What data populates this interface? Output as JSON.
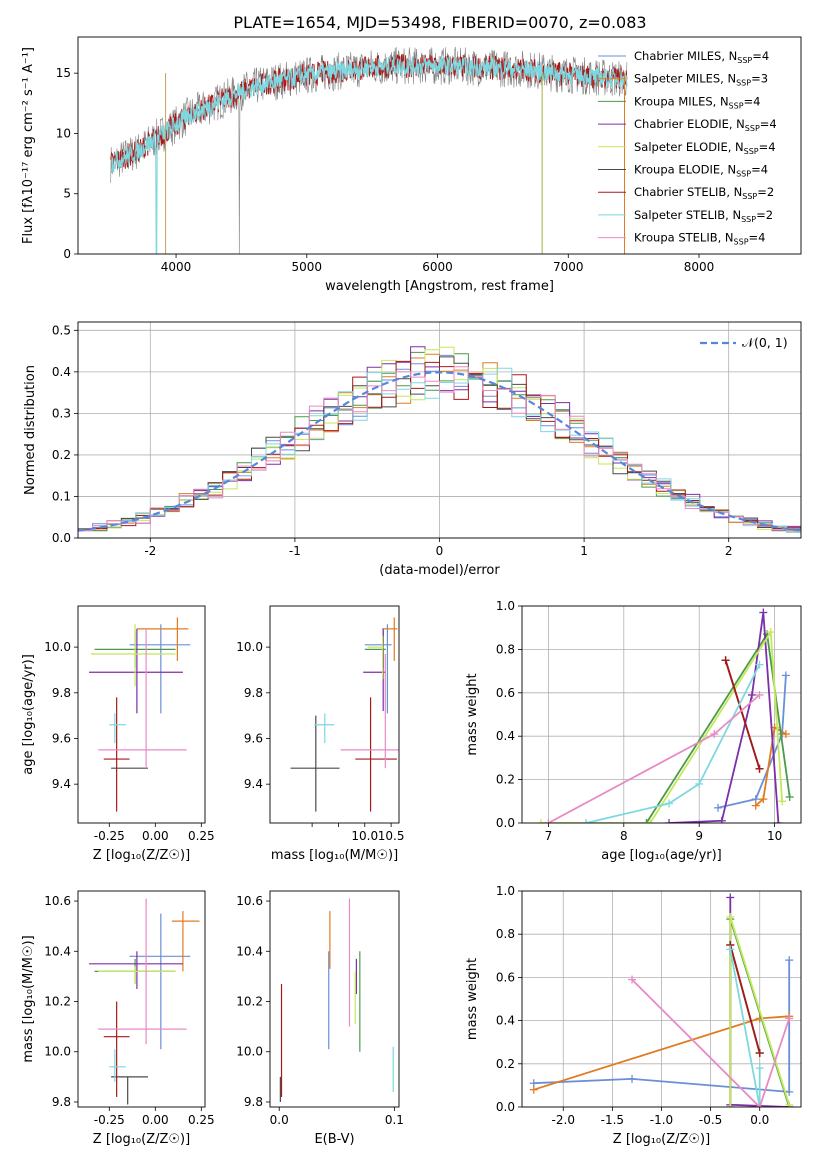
{
  "figure_title": "PLATE=1654, MJD=53498, FIBERID=0070, z=0.083",
  "series_colors": [
    "#6a8fd8",
    "#e07b1f",
    "#4a9a4a",
    "#7b2fa8",
    "#c4e85a",
    "#4a4a4a",
    "#a81a1a",
    "#7ed8e0",
    "#e88ac4"
  ],
  "chart_data": [
    {
      "id": "spectrum",
      "type": "line",
      "xlabel": "wavelength [Angstrom, rest frame]",
      "ylabel": "Flux [fλ10⁻¹⁷ erg cm⁻² s⁻¹ A⁻¹]",
      "xlim": [
        3250,
        8780
      ],
      "ylim": [
        0,
        18
      ],
      "xticks": [
        4000,
        5000,
        6000,
        7000,
        8000
      ],
      "yticks": [
        0,
        5,
        10,
        15
      ],
      "grid": false,
      "legend_position": "right",
      "legend": [
        "Chabrier MILES, N_SSP=4",
        "Salpeter MILES, N_SSP=3",
        "Kroupa MILES, N_SSP=4",
        "Chabrier ELODIE, N_SSP=4",
        "Salpeter ELODIE, N_SSP=4",
        "Kroupa ELODIE, N_SSP=4",
        "Chabrier STELIB, N_SSP=2",
        "Salpeter STELIB, N_SSP=2",
        "Kroupa STELIB, N_SSP=4"
      ],
      "legend_colors": [
        "#6a8fd8",
        "#e07b1f",
        "#4a9a4a",
        "#7b2fa8",
        "#c4e85a",
        "#4a4a4a",
        "#a81a1a",
        "#7ed8e0",
        "#e88ac4"
      ],
      "continuum": {
        "x": [
          3500,
          3700,
          3900,
          4100,
          4300,
          4500,
          4700,
          4900,
          5100,
          5300,
          5500,
          5700,
          5900,
          6100,
          6300,
          6500,
          6700,
          6900,
          7100,
          7300,
          7450
        ],
        "y": [
          7.5,
          8.5,
          10.0,
          11.5,
          12.5,
          13.5,
          14.2,
          14.6,
          15.0,
          15.2,
          15.5,
          15.6,
          15.6,
          15.6,
          15.5,
          15.4,
          15.3,
          15.0,
          14.8,
          14.6,
          14.5
        ]
      }
    },
    {
      "id": "residuals",
      "type": "line",
      "xlabel": "(data-model)/error",
      "ylabel": "Normed distribution",
      "xlim": [
        -2.5,
        2.5
      ],
      "ylim": [
        0,
        0.52
      ],
      "xticks": [
        -2,
        -1,
        0,
        1,
        2
      ],
      "yticks": [
        0.0,
        0.1,
        0.2,
        0.3,
        0.4,
        0.5
      ],
      "grid": true,
      "legend_position": "top-right",
      "legend": [
        "𝒩(0, 1)"
      ],
      "bin_width": 0.1
    },
    {
      "id": "age_vs_Z",
      "type": "scatter",
      "xlabel": "Z [log₁₀(Z/Z☉)]",
      "ylabel": "age  [log₁₀(age/yr)]",
      "xlim": [
        -0.42,
        0.27
      ],
      "ylim": [
        9.23,
        10.18
      ],
      "xticks": [
        -0.25,
        0.0,
        0.25
      ],
      "yticks": [
        9.4,
        9.6,
        9.8,
        10.0
      ],
      "points": [
        {
          "x": 0.03,
          "y": 10.01,
          "xerr": [
            0.17,
            0.16
          ],
          "yerr": [
            0.3,
            0.09
          ]
        },
        {
          "x": 0.12,
          "y": 10.08,
          "xerr": [
            0.22,
            0.06
          ],
          "yerr": [
            0.14,
            0.05
          ]
        },
        {
          "x": -0.11,
          "y": 9.99,
          "xerr": [
            0.22,
            0.22
          ],
          "yerr": [
            0.08,
            0.08
          ]
        },
        {
          "x": -0.1,
          "y": 9.89,
          "xerr": [
            0.26,
            0.25
          ],
          "yerr": [
            0.18,
            0.19
          ]
        },
        {
          "x": -0.11,
          "y": 9.97,
          "xerr": [
            0.24,
            0.22
          ],
          "yerr": [
            0.14,
            0.13
          ]
        },
        {
          "x": -0.15,
          "y": 9.47,
          "xerr": [
            0.09,
            0.11
          ],
          "yerr": [
            0.0,
            0.0
          ]
        },
        {
          "x": -0.21,
          "y": 9.51,
          "xerr": [
            0.07,
            0.07
          ],
          "yerr": [
            0.23,
            0.27
          ]
        },
        {
          "x": -0.22,
          "y": 9.66,
          "xerr": [
            0.03,
            0.06
          ],
          "yerr": [
            0.08,
            0.05
          ]
        },
        {
          "x": -0.05,
          "y": 9.55,
          "xerr": [
            0.26,
            0.22
          ],
          "yerr": [
            0.08,
            0.53
          ]
        }
      ]
    },
    {
      "id": "age_vs_mass",
      "type": "scatter",
      "xlabel": "mass [log₁₀(M/M☉)]",
      "ylabel": "",
      "xlim": [
        8.2,
        10.65
      ],
      "ylim": [
        9.23,
        10.18
      ],
      "xticks": [
        9.0,
        9.5,
        10.0,
        10.5
      ],
      "xtick_labels": [
        "",
        "",
        "10.0",
        "10.5"
      ],
      "yticks": [
        9.4,
        9.6,
        9.8,
        10.0
      ],
      "points": [
        {
          "x": 10.43,
          "y": 10.01,
          "xerr": [
            0.43,
            0.08
          ],
          "yerr": [
            0.3,
            0.09
          ]
        },
        {
          "x": 10.56,
          "y": 10.08,
          "xerr": [
            0.23,
            0.06
          ],
          "yerr": [
            0.14,
            0.05
          ]
        },
        {
          "x": 10.35,
          "y": 9.99,
          "xerr": [
            0.35,
            0.05
          ],
          "yerr": [
            0.08,
            0.08
          ]
        },
        {
          "x": 10.35,
          "y": 9.89,
          "xerr": [
            0.38,
            0.05
          ],
          "yerr": [
            0.17,
            0.19
          ]
        },
        {
          "x": 10.34,
          "y": 10.0,
          "xerr": [
            0.29,
            0.02
          ],
          "yerr": [
            0.14,
            0.05
          ]
        },
        {
          "x": 9.07,
          "y": 9.47,
          "xerr": [
            0.48,
            0.45
          ],
          "yerr": [
            0.19,
            0.23
          ]
        },
        {
          "x": 10.11,
          "y": 9.51,
          "xerr": [
            0.29,
            0.5
          ],
          "yerr": [
            0.23,
            0.27
          ]
        },
        {
          "x": 9.24,
          "y": 9.66,
          "xerr": [
            0.2,
            0.18
          ],
          "yerr": [
            0.08,
            0.05
          ]
        },
        {
          "x": 10.39,
          "y": 9.55,
          "xerr": [
            0.85,
            0.65
          ],
          "yerr": [
            0.08,
            0.42
          ]
        }
      ]
    },
    {
      "id": "mass_weight_vs_age",
      "type": "line",
      "xlabel": "age  [log₁₀(age/yr)]",
      "ylabel": "mass weight",
      "xlim": [
        6.65,
        10.35
      ],
      "ylim": [
        0,
        1.0
      ],
      "xticks": [
        7,
        8,
        9,
        10
      ],
      "yticks": [
        0.0,
        0.2,
        0.4,
        0.6,
        0.8,
        1.0
      ],
      "grid": true,
      "series": [
        {
          "x": [
            9.25,
            9.75,
            10.1,
            10.15
          ],
          "y": [
            0.07,
            0.11,
            0.41,
            0.68
          ]
        },
        {
          "x": [
            9.75,
            9.85,
            10.0,
            10.15
          ],
          "y": [
            0.08,
            0.11,
            0.44,
            0.41
          ]
        },
        {
          "x": [
            8.3,
            9.9,
            10.2
          ],
          "y": [
            0.0,
            0.87,
            0.12
          ]
        },
        {
          "x": [
            8.6,
            9.3,
            9.7,
            9.85,
            10.05
          ],
          "y": [
            0.0,
            0.01,
            0.59,
            0.97,
            0.0
          ]
        },
        {
          "x": [
            6.9,
            8.35,
            9.95,
            10.1
          ],
          "y": [
            0.0,
            0.0,
            0.88,
            0.1
          ]
        },
        {
          "x": [
            9.35,
            9.8
          ],
          "y": [
            0.75,
            0.25
          ]
        },
        {
          "x": [
            9.35,
            9.8
          ],
          "y": [
            0.75,
            0.25
          ]
        },
        {
          "x": [
            7.5,
            8.6,
            9.0,
            9.8
          ],
          "y": [
            0.0,
            0.09,
            0.18,
            0.73
          ]
        },
        {
          "x": [
            7.0,
            9.2,
            9.8
          ],
          "y": [
            0.0,
            0.41,
            0.59
          ]
        }
      ]
    },
    {
      "id": "mass_vs_Z",
      "type": "scatter",
      "xlabel": "Z [log₁₀(Z/Z☉)]",
      "ylabel": "mass [log₁₀(M/M☉)]",
      "xlim": [
        -0.42,
        0.27
      ],
      "ylim": [
        9.78,
        10.64
      ],
      "xticks": [
        -0.25,
        0.0,
        0.25
      ],
      "yticks": [
        9.8,
        10.0,
        10.2,
        10.4,
        10.6
      ],
      "points": [
        {
          "x": 0.03,
          "y": 10.38,
          "xerr": [
            0.17,
            0.16
          ],
          "yerr": [
            0.37,
            0.17
          ]
        },
        {
          "x": 0.15,
          "y": 10.52,
          "xerr": [
            0.06,
            0.09
          ],
          "yerr": [
            0.2,
            0.04
          ]
        },
        {
          "x": -0.11,
          "y": 10.32,
          "xerr": [
            0.22,
            0.22
          ],
          "yerr": [
            0.05,
            0.05
          ]
        },
        {
          "x": -0.1,
          "y": 10.35,
          "xerr": [
            0.26,
            0.25
          ],
          "yerr": [
            0.1,
            0.05
          ]
        },
        {
          "x": -0.11,
          "y": 10.32,
          "xerr": [
            0.2,
            0.22
          ],
          "yerr": [
            0.05,
            0.02
          ]
        },
        {
          "x": -0.15,
          "y": 9.9,
          "xerr": [
            0.09,
            0.11
          ],
          "yerr": [
            0.11,
            0.0
          ]
        },
        {
          "x": -0.21,
          "y": 10.06,
          "xerr": [
            0.07,
            0.07
          ],
          "yerr": [
            0.24,
            0.14
          ]
        },
        {
          "x": -0.22,
          "y": 9.94,
          "xerr": [
            0.03,
            0.06
          ],
          "yerr": [
            0.06,
            0.07
          ]
        },
        {
          "x": -0.05,
          "y": 10.09,
          "xerr": [
            0.26,
            0.22
          ],
          "yerr": [
            0.06,
            0.52
          ]
        }
      ]
    },
    {
      "id": "mass_vs_ebv",
      "type": "scatter",
      "xlabel": "E(B-V)",
      "ylabel": "",
      "xlim": [
        -0.008,
        0.104
      ],
      "ylim": [
        9.78,
        10.64
      ],
      "xticks": [
        0.0,
        0.1
      ],
      "yticks": [
        9.8,
        10.0,
        10.2,
        10.4,
        10.6
      ],
      "points": [
        {
          "x": 0.043,
          "y": 10.2,
          "xerr": [
            0,
            0
          ],
          "yerr": [
            0.19,
            0.2
          ]
        },
        {
          "x": 0.044,
          "y": 10.45,
          "xerr": [
            0,
            0
          ],
          "yerr": [
            0.12,
            0.11
          ]
        },
        {
          "x": 0.07,
          "y": 10.2,
          "xerr": [
            0,
            0
          ],
          "yerr": [
            0.2,
            0.2
          ]
        },
        {
          "x": 0.067,
          "y": 10.33,
          "xerr": [
            0,
            0
          ],
          "yerr": [
            0.1,
            0.04
          ]
        },
        {
          "x": 0.066,
          "y": 10.25,
          "xerr": [
            0,
            0
          ],
          "yerr": [
            0.14,
            0.07
          ]
        },
        {
          "x": 0.001,
          "y": 9.9,
          "xerr": [
            0,
            0
          ],
          "yerr": [
            0.1,
            0.0
          ]
        },
        {
          "x": 0.002,
          "y": 10.06,
          "xerr": [
            0,
            0
          ],
          "yerr": [
            0.24,
            0.21
          ]
        },
        {
          "x": 0.099,
          "y": 9.94,
          "xerr": [
            0,
            0
          ],
          "yerr": [
            0.1,
            0.08
          ]
        },
        {
          "x": 0.061,
          "y": 10.45,
          "xerr": [
            0,
            0
          ],
          "yerr": [
            0.35,
            0.16
          ]
        }
      ]
    },
    {
      "id": "mass_weight_vs_Z",
      "type": "line",
      "xlabel": "Z [log₁₀(Z/Z☉)]",
      "ylabel": "mass weight",
      "xlim": [
        -2.42,
        0.42
      ],
      "ylim": [
        0,
        1.0
      ],
      "xticks": [
        -2.0,
        -1.5,
        -1.0,
        -0.5,
        0.0
      ],
      "yticks": [
        0.0,
        0.2,
        0.4,
        0.6,
        0.8,
        1.0
      ],
      "grid": true,
      "series": [
        {
          "x": [
            -2.3,
            -1.3,
            0.3,
            0.3
          ],
          "y": [
            0.11,
            0.13,
            0.07,
            0.68
          ]
        },
        {
          "x": [
            -2.3,
            0.0,
            0.3
          ],
          "y": [
            0.08,
            0.41,
            0.42
          ]
        },
        {
          "x": [
            -0.3,
            -0.3,
            0.3
          ],
          "y": [
            0.0,
            0.87,
            0.0
          ]
        },
        {
          "x": [
            -0.3,
            -0.3,
            0.3
          ],
          "y": [
            0.97,
            0.01,
            0.0
          ]
        },
        {
          "x": [
            -0.3,
            -0.3,
            0.3
          ],
          "y": [
            0.0,
            0.88,
            0.01
          ]
        },
        {
          "x": [
            -0.3,
            0.0
          ],
          "y": [
            0.75,
            0.25
          ]
        },
        {
          "x": [
            -0.3,
            0.0
          ],
          "y": [
            0.75,
            0.25
          ]
        },
        {
          "x": [
            -0.3,
            0.0,
            0.0
          ],
          "y": [
            0.73,
            0.0,
            0.18
          ]
        },
        {
          "x": [
            -1.3,
            0.0,
            0.3
          ],
          "y": [
            0.59,
            0.0,
            0.41
          ]
        }
      ]
    }
  ]
}
